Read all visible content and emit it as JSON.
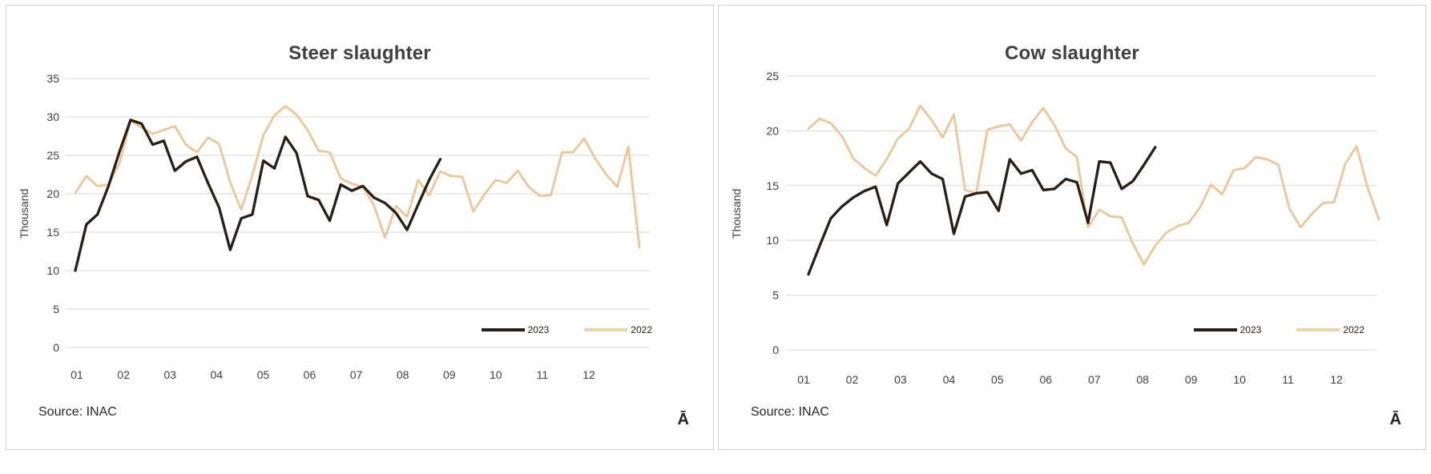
{
  "page": {
    "background": "#ffffff"
  },
  "colors": {
    "line_2023": "#2a1e13",
    "line_2022": "#f0c596",
    "legend_swatch_2022": "#eed2ad",
    "grid": "#d9d9d9",
    "axis_text": "#404040",
    "title_text": "#3f3f3f",
    "source_text": "#262626",
    "panel_border": "#d2cfcf"
  },
  "chart_data": [
    {
      "type": "line",
      "title": "Steer slaughter",
      "ylabel": "Thousand",
      "xlabel": "",
      "ylim": [
        0,
        35
      ],
      "yticks": [
        0,
        5,
        10,
        15,
        20,
        25,
        30,
        35
      ],
      "x_tick_labels": [
        "01",
        "02",
        "03",
        "04",
        "05",
        "06",
        "07",
        "08",
        "09",
        "10",
        "11",
        "12"
      ],
      "x_unit": "week of year (52 weekly points)",
      "grid": "horizontal only",
      "legend_position": "inside bottom-right",
      "source_note": "Source: INAC",
      "corner_glyph": "Ā",
      "series": [
        {
          "name": "2023",
          "color_key": "line_2023",
          "values": [
            10.0,
            16.0,
            17.3,
            21.0,
            25.5,
            29.6,
            29.1,
            26.4,
            26.9,
            23.0,
            24.2,
            24.8,
            21.4,
            18.2,
            12.7,
            16.8,
            17.3,
            24.3,
            23.3,
            27.4,
            25.3,
            19.7,
            19.2,
            16.5,
            21.2,
            20.4,
            21.0,
            19.5,
            18.8,
            17.5,
            15.3,
            18.6,
            21.8,
            24.5
          ]
        },
        {
          "name": "2022",
          "color_key": "line_2022",
          "values": [
            20.1,
            22.3,
            21.0,
            21.2,
            24.0,
            29.5,
            28.6,
            27.8,
            28.3,
            28.8,
            26.4,
            25.4,
            27.3,
            26.5,
            21.5,
            17.9,
            22.4,
            27.6,
            30.2,
            31.4,
            30.3,
            28.3,
            25.6,
            25.4,
            22.0,
            21.3,
            20.9,
            18.5,
            14.3,
            18.4,
            17.0,
            21.8,
            19.8,
            22.9,
            22.3,
            22.2,
            17.7,
            19.9,
            21.8,
            21.4,
            23.0,
            20.9,
            19.7,
            19.8,
            25.4,
            25.4,
            27.2,
            24.6,
            22.5,
            20.9,
            26.1,
            13.0
          ]
        }
      ]
    },
    {
      "type": "line",
      "title": "Cow slaughter",
      "ylabel": "Thousand",
      "xlabel": "",
      "ylim": [
        0,
        25
      ],
      "yticks": [
        0,
        5,
        10,
        15,
        20,
        25
      ],
      "x_tick_labels": [
        "01",
        "02",
        "03",
        "04",
        "05",
        "06",
        "07",
        "08",
        "09",
        "10",
        "11",
        "12"
      ],
      "x_unit": "week of year (52 weekly points)",
      "grid": "horizontal only",
      "legend_position": "inside bottom-right",
      "source_note": "Source: INAC",
      "corner_glyph": "Ā",
      "series": [
        {
          "name": "2023",
          "color_key": "line_2023",
          "values": [
            6.9,
            9.5,
            12.0,
            13.1,
            13.9,
            14.5,
            14.9,
            11.4,
            15.2,
            16.2,
            17.2,
            16.1,
            15.6,
            10.6,
            14.0,
            14.3,
            14.4,
            12.7,
            17.4,
            16.1,
            16.4,
            14.6,
            14.7,
            15.6,
            15.3,
            11.6,
            17.2,
            17.1,
            14.7,
            15.4,
            16.9,
            18.5
          ]
        },
        {
          "name": "2022",
          "color_key": "line_2022",
          "values": [
            20.2,
            21.1,
            20.7,
            19.5,
            17.5,
            16.6,
            15.9,
            17.4,
            19.3,
            20.2,
            22.3,
            21.0,
            19.4,
            21.5,
            14.6,
            14.3,
            20.1,
            20.4,
            20.6,
            19.1,
            20.8,
            22.1,
            20.5,
            18.4,
            17.6,
            11.2,
            12.8,
            12.2,
            12.1,
            9.7,
            7.8,
            9.5,
            10.7,
            11.3,
            11.6,
            13.0,
            15.1,
            14.2,
            16.4,
            16.6,
            17.6,
            17.4,
            16.9,
            12.9,
            11.2,
            12.4,
            13.4,
            13.5,
            17.0,
            18.6,
            14.8,
            11.9
          ]
        }
      ]
    }
  ]
}
